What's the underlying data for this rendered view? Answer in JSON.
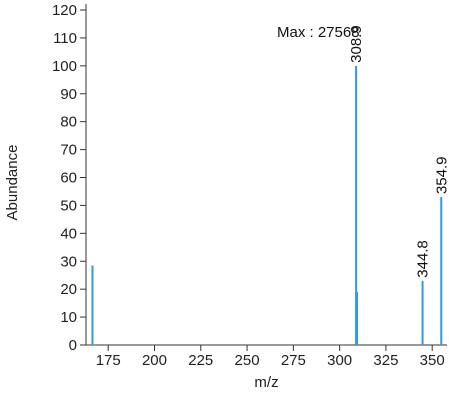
{
  "chart_data": {
    "type": "bar",
    "title": "",
    "xlabel": "m/z",
    "ylabel": "Abundance",
    "xlim": [
      163,
      358
    ],
    "ylim": [
      0,
      120
    ],
    "x_ticks": [
      175,
      200,
      225,
      250,
      275,
      300,
      325,
      350
    ],
    "y_ticks": [
      0,
      10,
      20,
      30,
      40,
      50,
      60,
      70,
      80,
      90,
      100,
      110,
      120
    ],
    "annotation": "Max : 27568",
    "bar_color": "#2f9be0",
    "grid": false,
    "peaks": [
      {
        "mz": 166.5,
        "abundance": 28.5,
        "label": ""
      },
      {
        "mz": 308.9,
        "abundance": 100,
        "label": "308.9"
      },
      {
        "mz": 309.4,
        "abundance": 19,
        "label": ""
      },
      {
        "mz": 344.8,
        "abundance": 23,
        "label": "344.8"
      },
      {
        "mz": 354.9,
        "abundance": 53,
        "label": "354.9"
      }
    ]
  }
}
